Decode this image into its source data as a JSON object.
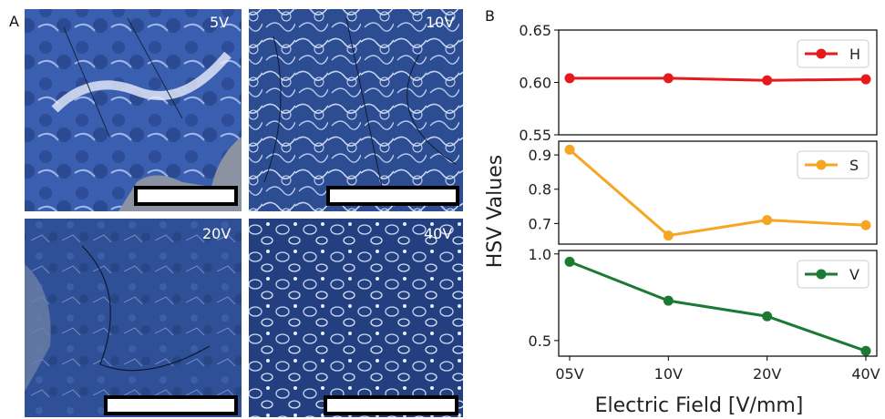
{
  "panel_a": {
    "letter": "A",
    "images": [
      {
        "label": "5V"
      },
      {
        "label": "10V"
      },
      {
        "label": "20V"
      },
      {
        "label": "40V"
      }
    ]
  },
  "panel_b": {
    "letter": "B"
  },
  "chart_data": {
    "type": "line",
    "categories": [
      "05V",
      "10V",
      "20V",
      "40V"
    ],
    "xlabel": "Electric Field  [V/mm]",
    "ylabel": "HSV Values",
    "subplots": [
      {
        "name": "H",
        "color": "#e41a1c",
        "values": [
          0.604,
          0.604,
          0.602,
          0.603
        ],
        "ylim": [
          0.55,
          0.65
        ],
        "yticks": [
          "0.55",
          "0.60",
          "0.65"
        ]
      },
      {
        "name": "S",
        "color": "#f5a623",
        "values": [
          0.915,
          0.665,
          0.71,
          0.695
        ],
        "ylim": [
          0.64,
          0.94
        ],
        "yticks": [
          "0.7",
          "0.8",
          "0.9"
        ]
      },
      {
        "name": "V",
        "color": "#1a7a34",
        "values": [
          0.955,
          0.73,
          0.64,
          0.44
        ],
        "ylim": [
          0.41,
          1.02
        ],
        "yticks": [
          "0.5",
          "1.0"
        ]
      }
    ]
  }
}
